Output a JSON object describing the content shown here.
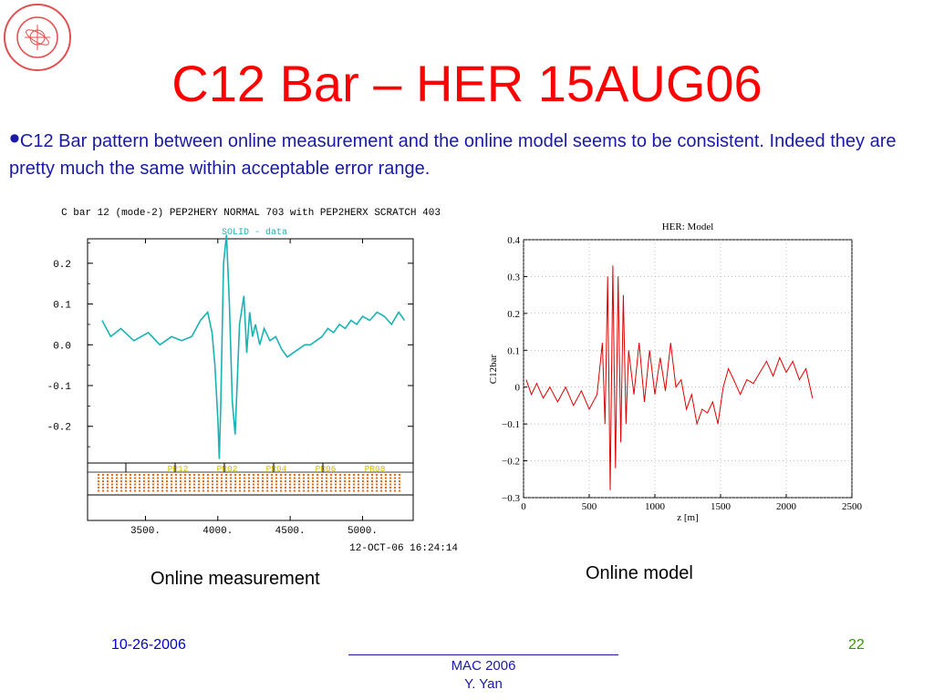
{
  "slide": {
    "title": "C12 Bar – HER 15AUG06",
    "bullet": "C12 Bar pattern between online measurement and the online model seems to be consistent. Indeed they are pretty much the same within acceptable error range.",
    "caption_left": "Online measurement",
    "caption_right": "Online model",
    "footer_date": "10-26-2006",
    "footer_page": "22",
    "footer_line1": "MAC 2006",
    "footer_line2": "Y. Yan"
  },
  "colors": {
    "title": "#ff0000",
    "text": "#1a1aa6",
    "measured": "#1ab3b3",
    "model": "#e00000",
    "pr_label": "#d4b800"
  },
  "chart_data": [
    {
      "type": "line",
      "title": "C bar 12 (mode-2) PEP2HERY NORMAL  703 with PEP2HERX SCRATCH 403",
      "legend": "SOLID  - data",
      "timestamp": "12-OCT-06 16:24:14",
      "xlabel": "",
      "ylabel": "",
      "xlim": [
        3100,
        5350
      ],
      "ylim": [
        -0.29,
        0.26
      ],
      "x_ticks": [
        "3500.",
        "4000.",
        "4500.",
        "5000."
      ],
      "x_tick_values": [
        3500,
        4000,
        4500,
        5000
      ],
      "y_ticks": [
        "0.2",
        "0.1",
        "0.0",
        "-0.1",
        "-0.2"
      ],
      "y_tick_values": [
        0.2,
        0.1,
        0.0,
        -0.1,
        -0.2
      ],
      "pr_labels": [
        "PR12",
        "PR02",
        "PR04",
        "PR06",
        "PR08"
      ],
      "series": [
        {
          "values": {
            "x": [
              3200,
              3260,
              3330,
              3420,
              3520,
              3600,
              3680,
              3750,
              3820,
              3880,
              3930,
              3960,
              3980,
              4000,
              4010,
              4020,
              4040,
              4060,
              4080,
              4100,
              4120,
              4150,
              4180,
              4200,
              4220,
              4240,
              4260,
              4290,
              4320,
              4360,
              4400,
              4440,
              4480,
              4520,
              4560,
              4600,
              4640,
              4680,
              4720,
              4760,
              4800,
              4840,
              4880,
              4920,
              4960,
              5000,
              5050,
              5100,
              5150,
              5200,
              5250,
              5290
            ],
            "y": [
              0.06,
              0.02,
              0.04,
              0.01,
              0.03,
              0.0,
              0.02,
              0.01,
              0.02,
              0.06,
              0.08,
              0.03,
              -0.05,
              -0.18,
              -0.28,
              -0.15,
              0.2,
              0.27,
              0.1,
              -0.14,
              -0.22,
              0.05,
              0.12,
              -0.02,
              0.08,
              0.02,
              0.05,
              0.0,
              0.04,
              0.01,
              0.02,
              -0.01,
              -0.03,
              -0.02,
              -0.01,
              0.0,
              0.0,
              0.01,
              0.02,
              0.04,
              0.03,
              0.05,
              0.04,
              0.06,
              0.05,
              0.07,
              0.06,
              0.08,
              0.07,
              0.05,
              0.08,
              0.06
            ]
          }
        }
      ]
    },
    {
      "type": "line",
      "title": "HER: Model",
      "xlabel": "z [m]",
      "ylabel": "C12bar",
      "xlim": [
        0,
        2500
      ],
      "ylim": [
        -0.3,
        0.4
      ],
      "x_ticks": [
        "0",
        "500",
        "1000",
        "1500",
        "2000",
        "2500"
      ],
      "x_tick_values": [
        0,
        500,
        1000,
        1500,
        2000,
        2500
      ],
      "y_ticks": [
        "0.4",
        "0.3",
        "0.2",
        "0.1",
        "0",
        "−0.1",
        "−0.2",
        "−0.3"
      ],
      "y_tick_values": [
        0.4,
        0.3,
        0.2,
        0.1,
        0,
        -0.1,
        -0.2,
        -0.3
      ],
      "series": [
        {
          "values": {
            "x": [
              20,
              60,
              100,
              150,
              200,
              260,
              320,
              380,
              440,
              500,
              560,
              600,
              620,
              640,
              660,
              680,
              700,
              720,
              740,
              760,
              780,
              800,
              820,
              840,
              880,
              920,
              960,
              1000,
              1040,
              1080,
              1120,
              1160,
              1200,
              1240,
              1280,
              1320,
              1360,
              1400,
              1440,
              1480,
              1520,
              1560,
              1600,
              1650,
              1700,
              1750,
              1800,
              1850,
              1900,
              1950,
              2000,
              2050,
              2100,
              2150,
              2200
            ],
            "y": [
              0.02,
              -0.02,
              0.01,
              -0.03,
              0.0,
              -0.04,
              0.0,
              -0.05,
              -0.01,
              -0.06,
              -0.02,
              0.12,
              -0.1,
              0.3,
              -0.28,
              0.33,
              -0.22,
              0.3,
              -0.15,
              0.25,
              -0.1,
              0.1,
              0.04,
              -0.02,
              0.12,
              -0.04,
              0.1,
              -0.02,
              0.08,
              -0.01,
              0.12,
              0.0,
              0.02,
              -0.06,
              -0.02,
              -0.1,
              -0.06,
              -0.07,
              -0.04,
              -0.1,
              0.0,
              0.05,
              0.02,
              -0.02,
              0.02,
              0.01,
              0.04,
              0.07,
              0.03,
              0.08,
              0.04,
              0.07,
              0.02,
              0.05,
              -0.03
            ]
          }
        }
      ]
    }
  ]
}
